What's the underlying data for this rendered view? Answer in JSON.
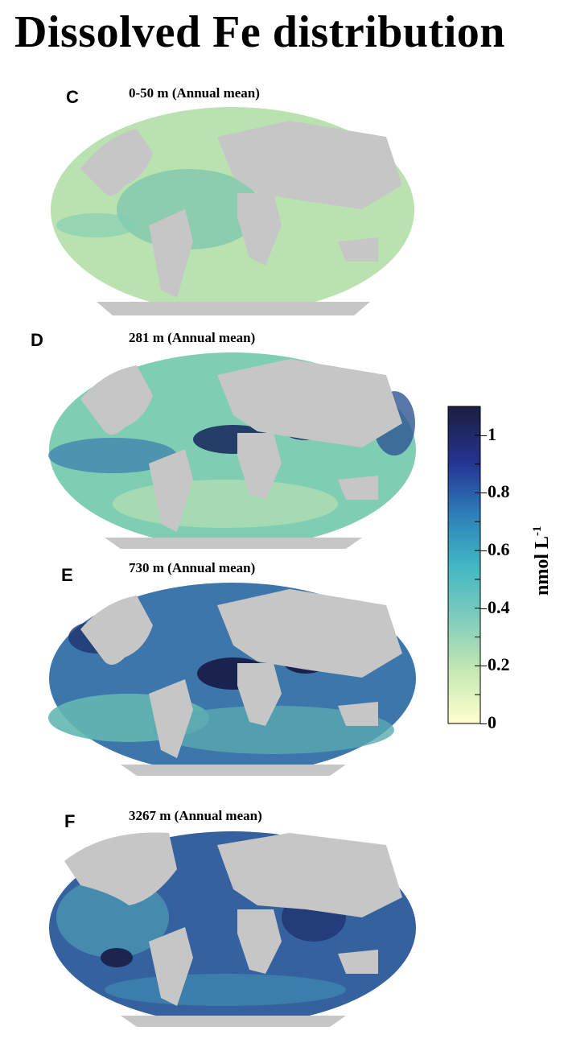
{
  "figure_title": "Dissolved Fe distribution",
  "panels": [
    {
      "letter": "C",
      "title": "0-50 m (Annual mean)",
      "ocean_color": "#b9e2b0",
      "accent_color": "#6cc0ae"
    },
    {
      "letter": "D",
      "title": "281 m (Annual mean)",
      "ocean_color": "#7fcdb3",
      "accent_color": "#1c2f5e"
    },
    {
      "letter": "E",
      "title": "730 m (Annual mean)",
      "ocean_color": "#3d76ab",
      "accent_color": "#1a234f"
    },
    {
      "letter": "F",
      "title": "3267 m (Annual mean)",
      "ocean_color": "#35629f",
      "accent_color": "#1b2550"
    }
  ],
  "colorbar": {
    "label": "nmol L",
    "label_superscript": "-1",
    "ticks": [
      "0",
      "0.2",
      "0.4",
      "0.6",
      "0.8",
      "1"
    ],
    "min": 0,
    "max": 1.1,
    "colors": [
      "#ffffcc",
      "#c7e9b4",
      "#7fcdbb",
      "#41b6c4",
      "#2c7fb8",
      "#253494",
      "#1b1f3f"
    ]
  },
  "land_color": "#c6c6c6"
}
